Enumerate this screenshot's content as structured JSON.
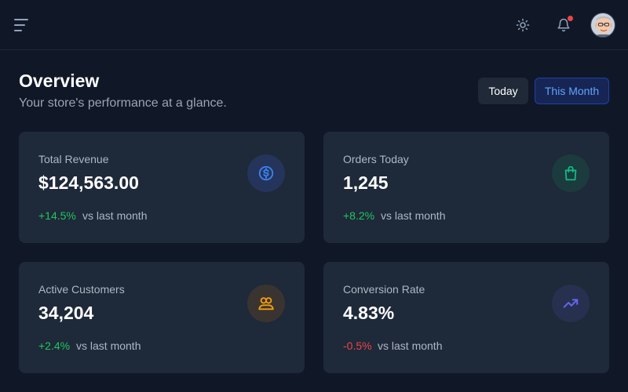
{
  "header": {
    "menu_icon": "hamburger-icon",
    "theme_icon": "sun-icon",
    "notification_icon": "bell-icon",
    "has_notification": true,
    "avatar_icon": "user-avatar"
  },
  "overview": {
    "title": "Overview",
    "subtitle": "Your store's performance at a glance.",
    "range_buttons": [
      {
        "label": "Today",
        "selected": false
      },
      {
        "label": "This Month",
        "selected": true
      }
    ]
  },
  "stats": [
    {
      "label": "Total Revenue",
      "value": "$124,563.00",
      "change": "+14.5%",
      "trend": "up",
      "compare": "vs last month",
      "icon": "dollar-icon",
      "accent": "#3b82f6"
    },
    {
      "label": "Orders Today",
      "value": "1,245",
      "change": "+8.2%",
      "trend": "up",
      "compare": "vs last month",
      "icon": "shopping-bag-icon",
      "accent": "#10b981"
    },
    {
      "label": "Active Customers",
      "value": "34,204",
      "change": "+2.4%",
      "trend": "up",
      "compare": "vs last month",
      "icon": "users-icon",
      "accent": "#f59e0b"
    },
    {
      "label": "Conversion Rate",
      "value": "4.83%",
      "change": "-0.5%",
      "trend": "down",
      "compare": "vs last month",
      "icon": "trending-up-icon",
      "accent": "#6366f1"
    }
  ],
  "colors": {
    "background": "#101828",
    "card": "#1e2939",
    "positive": "#22c55e",
    "negative": "#ef4444",
    "selected_button_text": "#60a5fa"
  }
}
